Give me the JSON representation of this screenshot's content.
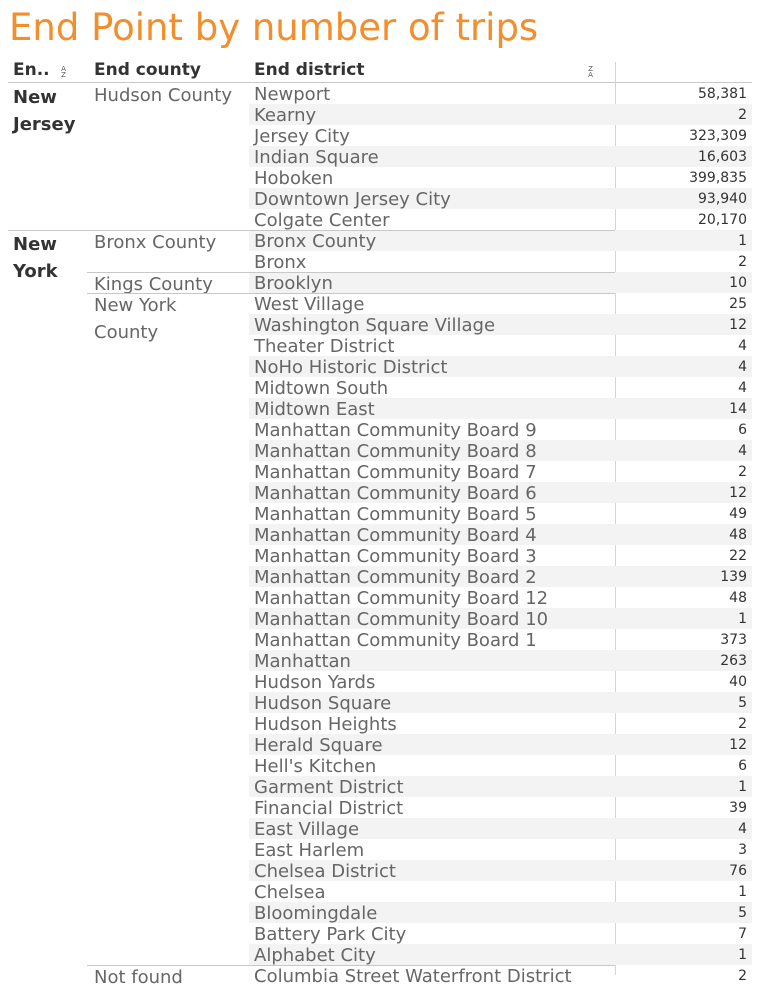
{
  "title": "End Point by number of trips",
  "headers": {
    "state": "En..",
    "county": "End county",
    "district": "End district"
  },
  "states": [
    {
      "name": "New Jersey",
      "counties": [
        {
          "name": "Hudson County",
          "rows": [
            [
              "Newport",
              "58,381"
            ],
            [
              "Kearny",
              "2"
            ],
            [
              "Jersey City",
              "323,309"
            ],
            [
              "Indian Square",
              "16,603"
            ],
            [
              "Hoboken",
              "399,835"
            ],
            [
              "Downtown Jersey City",
              "93,940"
            ],
            [
              "Colgate Center",
              "20,170"
            ]
          ]
        }
      ]
    },
    {
      "name": "New York",
      "counties": [
        {
          "name": "Bronx County",
          "rows": [
            [
              "Bronx County",
              "1"
            ],
            [
              "Bronx",
              "2"
            ]
          ]
        },
        {
          "name": "Kings County",
          "rows": [
            [
              "Brooklyn",
              "10"
            ]
          ]
        },
        {
          "name": "New York County",
          "rows": [
            [
              "West Village",
              "25"
            ],
            [
              "Washington Square Village",
              "12"
            ],
            [
              "Theater District",
              "4"
            ],
            [
              "NoHo Historic District",
              "4"
            ],
            [
              "Midtown South",
              "4"
            ],
            [
              "Midtown East",
              "14"
            ],
            [
              "Manhattan Community Board 9",
              "6"
            ],
            [
              "Manhattan Community Board 8",
              "4"
            ],
            [
              "Manhattan Community Board 7",
              "2"
            ],
            [
              "Manhattan Community Board 6",
              "12"
            ],
            [
              "Manhattan Community Board 5",
              "49"
            ],
            [
              "Manhattan Community Board 4",
              "48"
            ],
            [
              "Manhattan Community Board 3",
              "22"
            ],
            [
              "Manhattan Community Board 2",
              "139"
            ],
            [
              "Manhattan Community Board 12",
              "48"
            ],
            [
              "Manhattan Community Board 10",
              "1"
            ],
            [
              "Manhattan Community Board 1",
              "373"
            ],
            [
              "Manhattan",
              "263"
            ],
            [
              "Hudson Yards",
              "40"
            ],
            [
              "Hudson Square",
              "5"
            ],
            [
              "Hudson Heights",
              "2"
            ],
            [
              "Herald Square",
              "12"
            ],
            [
              "Hell's Kitchen",
              "6"
            ],
            [
              "Garment District",
              "1"
            ],
            [
              "Financial District",
              "39"
            ],
            [
              "East Village",
              "4"
            ],
            [
              "East Harlem",
              "3"
            ],
            [
              "Chelsea District",
              "76"
            ],
            [
              "Chelsea",
              "1"
            ],
            [
              "Bloomingdale",
              "5"
            ],
            [
              "Battery Park City",
              "7"
            ],
            [
              "Alphabet City",
              "1"
            ]
          ]
        },
        {
          "name": "Not found",
          "rows": [
            [
              "Columbia Street Waterfront District",
              "2"
            ]
          ]
        }
      ]
    }
  ],
  "chart_data": {
    "type": "table",
    "title": "End Point by number of trips",
    "columns": [
      "En..",
      "End county",
      "End district",
      ""
    ],
    "rows": [
      [
        "New Jersey",
        "Hudson County",
        "Newport",
        58381
      ],
      [
        "New Jersey",
        "Hudson County",
        "Kearny",
        2
      ],
      [
        "New Jersey",
        "Hudson County",
        "Jersey City",
        323309
      ],
      [
        "New Jersey",
        "Hudson County",
        "Indian Square",
        16603
      ],
      [
        "New Jersey",
        "Hudson County",
        "Hoboken",
        399835
      ],
      [
        "New Jersey",
        "Hudson County",
        "Downtown Jersey City",
        93940
      ],
      [
        "New Jersey",
        "Hudson County",
        "Colgate Center",
        20170
      ],
      [
        "New York",
        "Bronx County",
        "Bronx County",
        1
      ],
      [
        "New York",
        "Bronx County",
        "Bronx",
        2
      ],
      [
        "New York",
        "Kings County",
        "Brooklyn",
        10
      ],
      [
        "New York",
        "New York County",
        "West Village",
        25
      ],
      [
        "New York",
        "New York County",
        "Washington Square Village",
        12
      ],
      [
        "New York",
        "New York County",
        "Theater District",
        4
      ],
      [
        "New York",
        "New York County",
        "NoHo Historic District",
        4
      ],
      [
        "New York",
        "New York County",
        "Midtown South",
        4
      ],
      [
        "New York",
        "New York County",
        "Midtown East",
        14
      ],
      [
        "New York",
        "New York County",
        "Manhattan Community Board 9",
        6
      ],
      [
        "New York",
        "New York County",
        "Manhattan Community Board 8",
        4
      ],
      [
        "New York",
        "New York County",
        "Manhattan Community Board 7",
        2
      ],
      [
        "New York",
        "New York County",
        "Manhattan Community Board 6",
        12
      ],
      [
        "New York",
        "New York County",
        "Manhattan Community Board 5",
        49
      ],
      [
        "New York",
        "New York County",
        "Manhattan Community Board 4",
        48
      ],
      [
        "New York",
        "New York County",
        "Manhattan Community Board 3",
        22
      ],
      [
        "New York",
        "New York County",
        "Manhattan Community Board 2",
        139
      ],
      [
        "New York",
        "New York County",
        "Manhattan Community Board 12",
        48
      ],
      [
        "New York",
        "New York County",
        "Manhattan Community Board 10",
        1
      ],
      [
        "New York",
        "New York County",
        "Manhattan Community Board 1",
        373
      ],
      [
        "New York",
        "New York County",
        "Manhattan",
        263
      ],
      [
        "New York",
        "New York County",
        "Hudson Yards",
        40
      ],
      [
        "New York",
        "New York County",
        "Hudson Square",
        5
      ],
      [
        "New York",
        "New York County",
        "Hudson Heights",
        2
      ],
      [
        "New York",
        "New York County",
        "Herald Square",
        12
      ],
      [
        "New York",
        "New York County",
        "Hell's Kitchen",
        6
      ],
      [
        "New York",
        "New York County",
        "Garment District",
        1
      ],
      [
        "New York",
        "New York County",
        "Financial District",
        39
      ],
      [
        "New York",
        "New York County",
        "East Village",
        4
      ],
      [
        "New York",
        "New York County",
        "East Harlem",
        3
      ],
      [
        "New York",
        "New York County",
        "Chelsea District",
        76
      ],
      [
        "New York",
        "New York County",
        "Chelsea",
        1
      ],
      [
        "New York",
        "New York County",
        "Bloomingdale",
        5
      ],
      [
        "New York",
        "New York County",
        "Battery Park City",
        7
      ],
      [
        "New York",
        "New York County",
        "Alphabet City",
        1
      ],
      [
        "New York",
        "Not found",
        "Columbia Street Waterfront District",
        2
      ]
    ]
  }
}
